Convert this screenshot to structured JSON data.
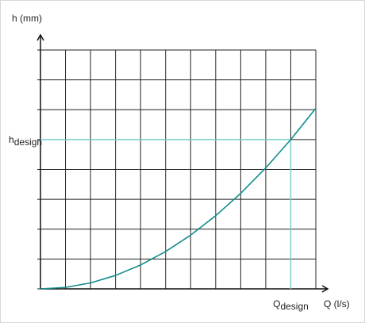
{
  "chart_data": {
    "type": "line",
    "y_label": "h (mm)",
    "x_label": "Q (l/s)",
    "xlim": [
      0,
      11
    ],
    "ylim": [
      0,
      8
    ],
    "xgrid": [
      0,
      1,
      2,
      3,
      4,
      5,
      6,
      7,
      8,
      9,
      10,
      11
    ],
    "ygrid": [
      0,
      1,
      2,
      3,
      4,
      5,
      6,
      7,
      8
    ],
    "x": [
      0,
      1,
      2,
      3,
      4,
      5,
      6,
      7,
      8,
      9,
      10,
      11
    ],
    "series": [
      {
        "color": "#148c8c",
        "values": [
          0,
          0.05,
          0.2,
          0.45,
          0.8,
          1.25,
          1.8,
          2.45,
          3.2,
          4.05,
          5,
          6.05
        ]
      }
    ],
    "design": {
      "color": "#7fd0d0",
      "x": {
        "value": 10,
        "label": "Q",
        "sub": "design"
      },
      "y": {
        "value": 5,
        "label": "h",
        "sub": "design"
      }
    }
  }
}
